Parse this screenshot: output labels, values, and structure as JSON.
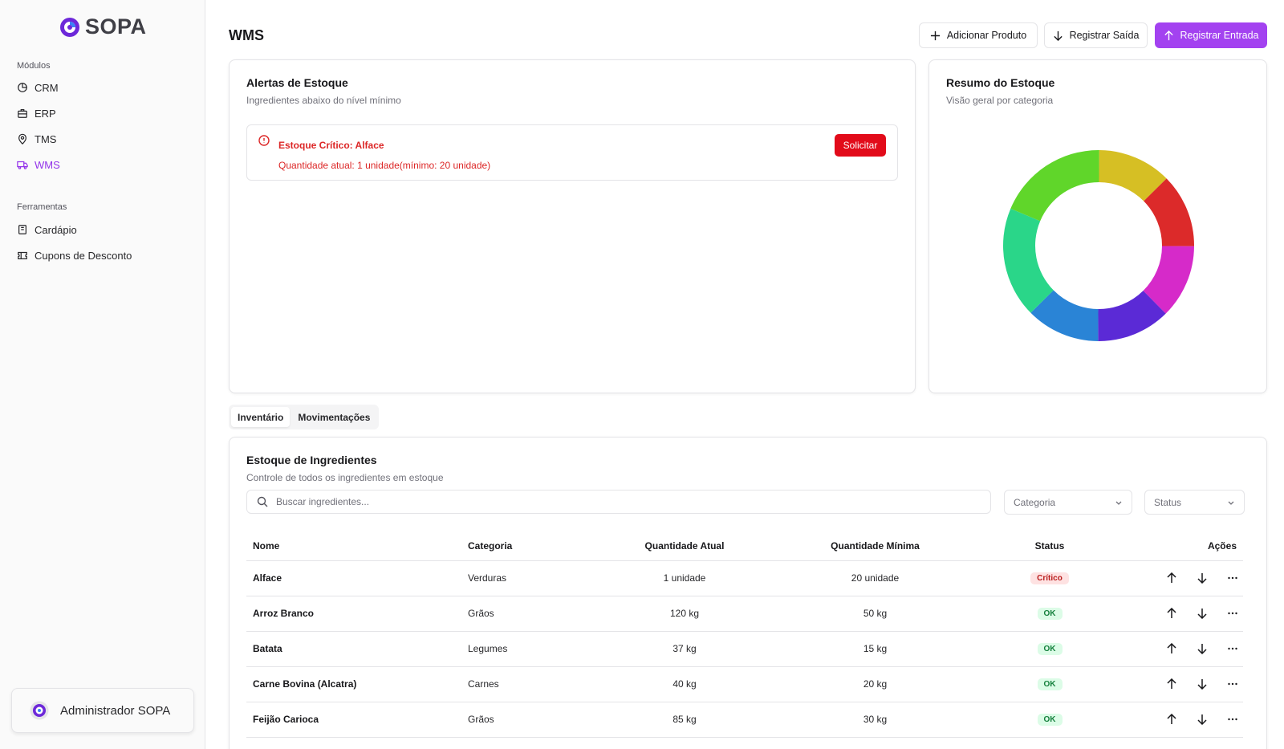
{
  "sidebar": {
    "brand": "SOPA",
    "groups": [
      {
        "label": "Módulos",
        "items": [
          {
            "label": "CRM",
            "icon": "chart-pie-icon"
          },
          {
            "label": "ERP",
            "icon": "briefcase-icon"
          },
          {
            "label": "TMS",
            "icon": "map-pin-icon"
          },
          {
            "label": "WMS",
            "icon": "truck-icon",
            "active": true
          }
        ]
      },
      {
        "label": "Ferramentas",
        "items": [
          {
            "label": "Cardápio",
            "icon": "book-icon"
          },
          {
            "label": "Cupons de Desconto",
            "icon": "ticket-icon"
          }
        ]
      }
    ],
    "user": "Administrador SOPA"
  },
  "header": {
    "title": "WMS",
    "actions": {
      "add_product": "Adicionar Produto",
      "register_exit": "Registrar Saída",
      "register_entry": "Registrar Entrada"
    }
  },
  "alerts_card": {
    "title": "Alertas de Estoque",
    "subtitle": "Ingredientes abaixo do nível mínimo",
    "alerts": [
      {
        "title": "Estoque Crítico: Alface",
        "description": "Quantidade atual: 1 unidade(mínimo: 20 unidade)",
        "action": "Solicitar"
      }
    ]
  },
  "summary_card": {
    "title": "Resumo do Estoque",
    "subtitle": "Visão geral por categoria"
  },
  "chart_data": {
    "type": "pie",
    "donut": true,
    "slices": [
      {
        "value": 1,
        "color": "#d6bf24"
      },
      {
        "value": 1,
        "color": "#dc2a2a"
      },
      {
        "value": 1,
        "color": "#d62ac9"
      },
      {
        "value": 1,
        "color": "#5b2ad6"
      },
      {
        "value": 1,
        "color": "#2a84d6"
      },
      {
        "value": 1.5,
        "color": "#2ad689"
      },
      {
        "value": 1.5,
        "color": "#60d62a"
      }
    ]
  },
  "tabs": [
    "Inventário",
    "Movimentações"
  ],
  "inventory": {
    "title": "Estoque de Ingredientes",
    "subtitle": "Controle de todos os ingredientes em estoque",
    "search_placeholder": "Buscar ingredientes...",
    "category_filter": "Categoria",
    "status_filter": "Status",
    "columns": [
      "Nome",
      "Categoria",
      "Quantidade Atual",
      "Quantidade Mínima",
      "Status",
      "Ações"
    ],
    "rows": [
      {
        "name": "Alface",
        "category": "Verduras",
        "current": "1 unidade",
        "minimum": "20 unidade",
        "status": "Crítico"
      },
      {
        "name": "Arroz Branco",
        "category": "Grãos",
        "current": "120 kg",
        "minimum": "50 kg",
        "status": "OK"
      },
      {
        "name": "Batata",
        "category": "Legumes",
        "current": "37 kg",
        "minimum": "15 kg",
        "status": "OK"
      },
      {
        "name": "Carne Bovina (Alcatra)",
        "category": "Carnes",
        "current": "40 kg",
        "minimum": "20 kg",
        "status": "OK"
      },
      {
        "name": "Feijão Carioca",
        "category": "Grãos",
        "current": "85 kg",
        "minimum": "30 kg",
        "status": "OK"
      }
    ]
  }
}
